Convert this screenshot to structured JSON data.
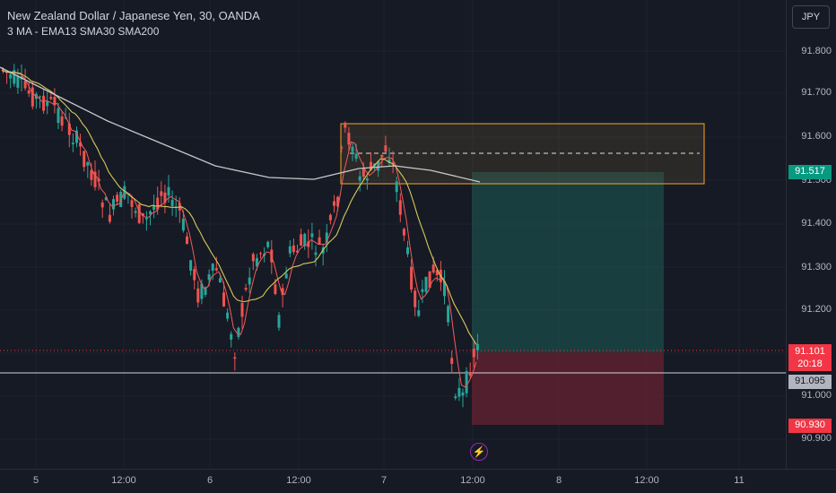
{
  "header": {
    "title": "New Zealand Dollar / Japanese Yen, 30, OANDA",
    "indicators": "3 MA - EMA13 SMA30 SMA200"
  },
  "currency_button": "JPY",
  "price_axis": [
    "91.800",
    "91.700",
    "91.600",
    "91.500",
    "91.400",
    "91.300",
    "91.200",
    "91.000",
    "90.900"
  ],
  "badges": {
    "target": "91.517",
    "last_price": "91.101",
    "countdown": "20:18",
    "line_price": "91.095",
    "stop": "90.930"
  },
  "time_axis": [
    "5",
    "12:00",
    "6",
    "12:00",
    "7",
    "12:00",
    "8",
    "12:00",
    "11"
  ],
  "colors": {
    "background": "#161a25",
    "up": "#26a69a",
    "down": "#ef5350",
    "ema13": "#f15b5b",
    "sma30": "#d6c85a",
    "sma200": "#c8c8c8",
    "zone": "#f5a623",
    "target_badge": "#089981",
    "price_badge": "#f23645",
    "gray_badge": "#b2b5be"
  },
  "icons": {
    "event": "lightning-bolt-icon"
  }
}
